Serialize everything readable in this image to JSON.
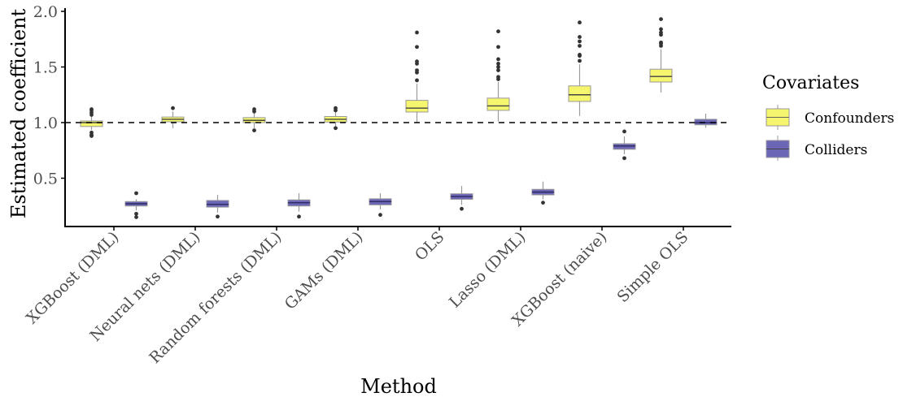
{
  "chart_data": {
    "type": "boxplot",
    "title": "",
    "xlabel": "Method",
    "ylabel": "Estimated coefficient",
    "ylim": [
      0.065,
      2.02
    ],
    "yticks": [
      0.5,
      1.0,
      1.5,
      2.0
    ],
    "ytick_labels": [
      "0.5",
      "1.0",
      "1.5",
      "2.0"
    ],
    "reference_line": {
      "y": 1.0,
      "style": "dashed"
    },
    "grid": false,
    "categories": [
      "XGBoost (DML)",
      "Neural nets (DML)",
      "Random forests (DML)",
      "GAMs (DML)",
      "OLS",
      "Lasso (DML)",
      "XGBoost (naive)",
      "Simple OLS"
    ],
    "legend": {
      "title": "Covariates",
      "position": "right",
      "entries": [
        {
          "name": "Confounders",
          "color": "#f5f56e"
        },
        {
          "name": "Colliders",
          "color": "#6b66b6"
        }
      ]
    },
    "series": [
      {
        "name": "Confounders",
        "color": "#f5f56e",
        "boxes": [
          {
            "q1": 0.965,
            "median": 1.0,
            "q3": 1.015,
            "whisker_low": 0.935,
            "whisker_high": 1.06,
            "outliers": [
              1.07,
              1.09,
              1.11,
              1.12,
              0.91,
              0.89,
              0.88
            ]
          },
          {
            "q1": 1.007,
            "median": 1.03,
            "q3": 1.05,
            "whisker_low": 0.95,
            "whisker_high": 1.1,
            "outliers": [
              1.13
            ]
          },
          {
            "q1": 1.0,
            "median": 1.02,
            "q3": 1.045,
            "whisker_low": 0.95,
            "whisker_high": 1.09,
            "outliers": [
              1.1,
              1.12,
              0.93
            ]
          },
          {
            "q1": 1.005,
            "median": 1.03,
            "q3": 1.055,
            "whisker_low": 0.965,
            "whisker_high": 1.1,
            "outliers": [
              1.11,
              1.13,
              0.95
            ]
          },
          {
            "q1": 1.095,
            "median": 1.13,
            "q3": 1.2,
            "whisker_low": 1.0,
            "whisker_high": 1.35,
            "outliers": [
              1.38,
              1.45,
              1.47,
              1.53,
              1.55,
              1.68,
              1.81
            ]
          },
          {
            "q1": 1.11,
            "median": 1.15,
            "q3": 1.22,
            "whisker_low": 1.01,
            "whisker_high": 1.365,
            "outliers": [
              1.39,
              1.41,
              1.47,
              1.5,
              1.53,
              1.57,
              1.68,
              1.82
            ]
          },
          {
            "q1": 1.19,
            "median": 1.25,
            "q3": 1.33,
            "whisker_low": 1.06,
            "whisker_high": 1.525,
            "outliers": [
              1.555,
              1.6,
              1.61,
              1.69,
              1.73,
              1.77,
              1.9
            ]
          },
          {
            "q1": 1.365,
            "median": 1.415,
            "q3": 1.48,
            "whisker_low": 1.27,
            "whisker_high": 1.66,
            "outliers": [
              1.69,
              1.71,
              1.72,
              1.79,
              1.81,
              1.84,
              1.93
            ]
          }
        ]
      },
      {
        "name": "Colliders",
        "color": "#6b66b6",
        "boxes": [
          {
            "q1": 0.25,
            "median": 0.27,
            "q3": 0.29,
            "whisker_low": 0.21,
            "whisker_high": 0.31,
            "outliers": [
              0.365,
              0.18,
              0.15
            ]
          },
          {
            "q1": 0.24,
            "median": 0.265,
            "q3": 0.3,
            "whisker_low": 0.19,
            "whisker_high": 0.35,
            "outliers": [
              0.155
            ]
          },
          {
            "q1": 0.25,
            "median": 0.28,
            "q3": 0.305,
            "whisker_low": 0.2,
            "whisker_high": 0.365,
            "outliers": [
              0.155
            ]
          },
          {
            "q1": 0.26,
            "median": 0.29,
            "q3": 0.315,
            "whisker_low": 0.22,
            "whisker_high": 0.365,
            "outliers": [
              0.17
            ]
          },
          {
            "q1": 0.31,
            "median": 0.335,
            "q3": 0.36,
            "whisker_low": 0.26,
            "whisker_high": 0.43,
            "outliers": [
              0.225
            ]
          },
          {
            "q1": 0.35,
            "median": 0.375,
            "q3": 0.4,
            "whisker_low": 0.31,
            "whisker_high": 0.47,
            "outliers": [
              0.28
            ]
          },
          {
            "q1": 0.76,
            "median": 0.79,
            "q3": 0.81,
            "whisker_low": 0.715,
            "whisker_high": 0.875,
            "outliers": [
              0.92,
              0.68
            ]
          },
          {
            "q1": 0.98,
            "median": 1.0,
            "q3": 1.03,
            "whisker_low": 0.955,
            "whisker_high": 1.08,
            "outliers": []
          }
        ]
      }
    ]
  }
}
